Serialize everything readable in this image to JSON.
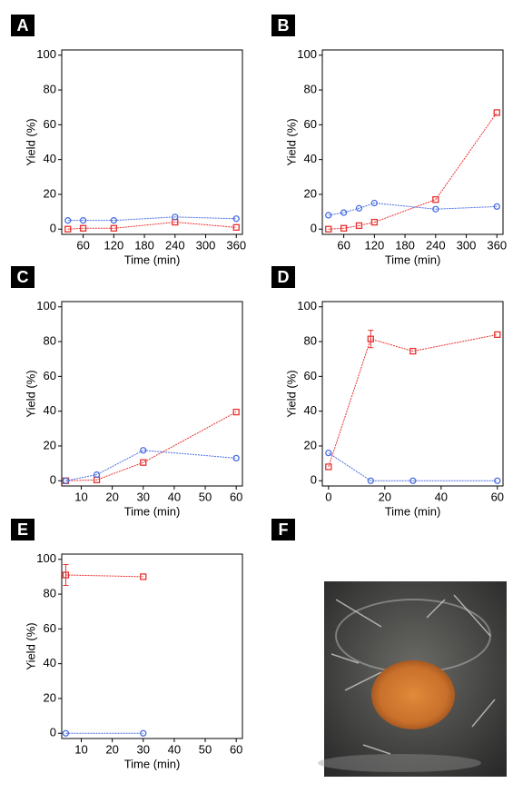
{
  "chart_data": [
    {
      "type": "line",
      "panel": "A",
      "xlabel": "Time (min)",
      "ylabel": "Yield (%)",
      "x": [
        30,
        60,
        120,
        240,
        360
      ],
      "xlim": [
        18,
        372
      ],
      "xticks": [
        60,
        120,
        180,
        240,
        300,
        360
      ],
      "ylim": [
        -3,
        103
      ],
      "yticks": [
        0,
        20,
        40,
        60,
        80,
        100
      ],
      "series": [
        {
          "color": "#e8312f",
          "marker": "square",
          "values": [
            0,
            0.5,
            0.5,
            4,
            1
          ]
        },
        {
          "color": "#4a6fe3",
          "marker": "circle",
          "values": [
            5,
            5,
            5,
            7,
            6
          ]
        }
      ]
    },
    {
      "type": "line",
      "panel": "B",
      "xlabel": "Time (min)",
      "ylabel": "Yield (%)",
      "x": [
        30,
        60,
        90,
        120,
        240,
        360
      ],
      "xlim": [
        18,
        372
      ],
      "xticks": [
        60,
        120,
        180,
        240,
        300,
        360
      ],
      "ylim": [
        -3,
        103
      ],
      "yticks": [
        0,
        20,
        40,
        60,
        80,
        100
      ],
      "series": [
        {
          "color": "#e8312f",
          "marker": "square",
          "values": [
            0,
            0.5,
            2,
            4,
            17,
            67
          ]
        },
        {
          "color": "#4a6fe3",
          "marker": "circle",
          "values": [
            8,
            9.5,
            12,
            15,
            11.5,
            13
          ]
        }
      ]
    },
    {
      "type": "line",
      "panel": "C",
      "xlabel": "Time (min)",
      "ylabel": "Yield (%)",
      "x": [
        5,
        15,
        30,
        60
      ],
      "xlim": [
        3.7,
        62
      ],
      "xticks": [
        10,
        20,
        30,
        40,
        50,
        60
      ],
      "ylim": [
        -3,
        103
      ],
      "yticks": [
        0,
        20,
        40,
        60,
        80,
        100
      ],
      "series": [
        {
          "color": "#e8312f",
          "marker": "square",
          "values": [
            0,
            0.5,
            10.5,
            39.5
          ]
        },
        {
          "color": "#4a6fe3",
          "marker": "circle",
          "values": [
            0,
            3.5,
            17.5,
            13
          ]
        }
      ]
    },
    {
      "type": "line",
      "panel": "D",
      "xlabel": "Time (min)",
      "ylabel": "Yield (%)",
      "x": [
        0,
        15,
        30,
        60
      ],
      "xlim": [
        -2.2,
        62
      ],
      "xticks": [
        0,
        20,
        40,
        60
      ],
      "ylim": [
        -3,
        103
      ],
      "yticks": [
        0,
        20,
        40,
        60,
        80,
        100
      ],
      "series": [
        {
          "color": "#e8312f",
          "marker": "square",
          "values": [
            8,
            81.5,
            74.5,
            84
          ],
          "errors": [
            null,
            5,
            null,
            null
          ]
        },
        {
          "color": "#4a6fe3",
          "marker": "circle",
          "values": [
            16,
            0,
            0,
            0
          ]
        }
      ]
    },
    {
      "type": "line",
      "panel": "E",
      "xlabel": "Time (min)",
      "ylabel": "Yield (%)",
      "x": [
        5,
        30
      ],
      "xlim": [
        3.7,
        62
      ],
      "xticks": [
        10,
        20,
        30,
        40,
        50,
        60
      ],
      "ylim": [
        -3,
        103
      ],
      "yticks": [
        0,
        20,
        40,
        60,
        80,
        100
      ],
      "series": [
        {
          "color": "#e8312f",
          "marker": "square",
          "values": [
            91,
            90
          ],
          "errors": [
            6,
            null
          ]
        },
        {
          "color": "#4a6fe3",
          "marker": "circle",
          "values": [
            0,
            0
          ]
        }
      ]
    },
    {
      "type": "image",
      "panel": "F"
    }
  ]
}
